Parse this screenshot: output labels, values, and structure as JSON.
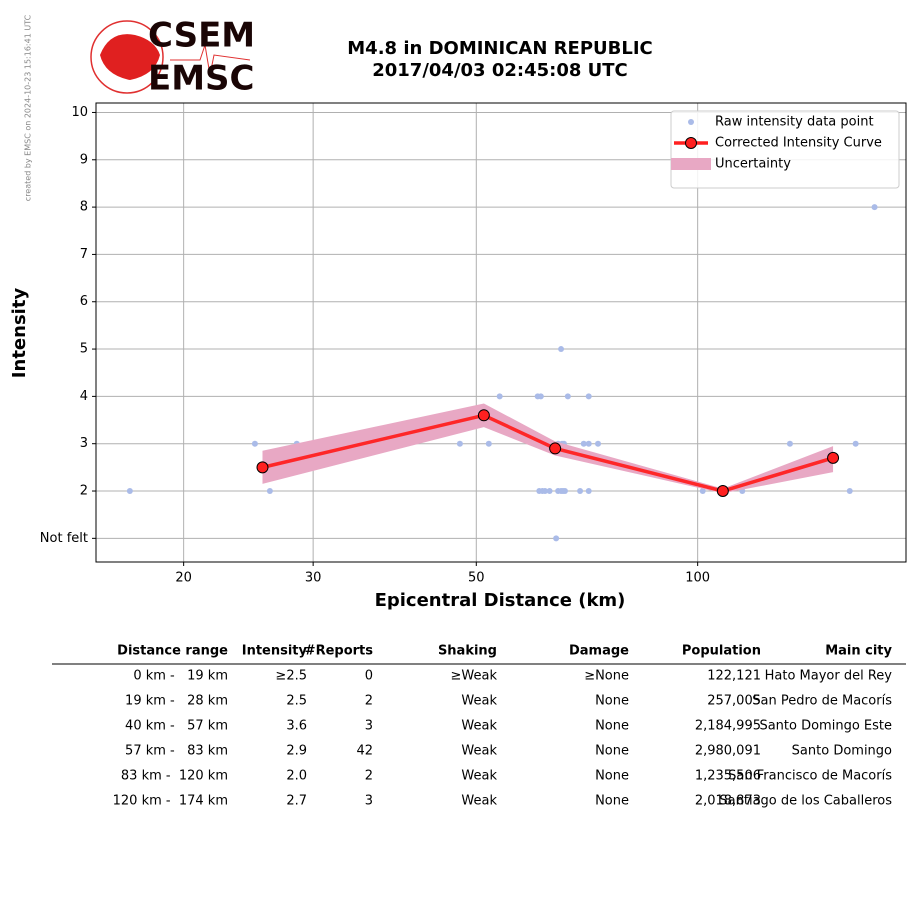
{
  "logo": {
    "top": "CSEM",
    "bottom": "EMSC"
  },
  "credit": "created by EMSC on 2024-10-23 15:16:41 UTC",
  "chart_data": {
    "type": "line",
    "title": "M4.8 in DOMINICAN REPUBLIC",
    "subtitle": "2017/04/03 02:45:08 UTC",
    "x_label": "Epicentral Distance (km)",
    "y_label": "Intensity",
    "xscale": "log",
    "xlim": [
      15.2,
      192
    ],
    "ylim": [
      0.5,
      10.2
    ],
    "xticks": [
      20,
      30,
      50,
      100
    ],
    "yticks": [
      {
        "value": 1,
        "label": "Not felt"
      },
      2,
      3,
      4,
      5,
      6,
      7,
      8,
      9,
      10
    ],
    "grid": true,
    "legend": "upper right",
    "series": [
      {
        "name": "Raw intensity data point",
        "kind": "scatter",
        "color": "#aabbe8",
        "x": [
          16.9,
          25.0,
          26.2,
          28.5,
          47.5,
          52.0,
          53.8,
          60.6,
          61.2,
          60.9,
          61.5,
          62.0,
          62.9,
          64.6,
          65.2,
          65.6,
          66.0,
          64.2,
          65.2,
          64.6,
          65.4,
          65.8,
          66.6,
          69.2,
          70.0,
          71.1,
          71.1,
          71.1,
          73.2,
          101.6,
          115,
          133.5,
          161,
          164,
          174
        ],
        "values": [
          2,
          3,
          2,
          3,
          3,
          3,
          4,
          4,
          4,
          2,
          2,
          2,
          2,
          2,
          2,
          2,
          2,
          1,
          5,
          3,
          3,
          3,
          4,
          2,
          3,
          4,
          3,
          2,
          3,
          2,
          2,
          3,
          2,
          3,
          8
        ]
      },
      {
        "name": "Corrected Intensity Curve",
        "kind": "line",
        "color": "#ff2020",
        "x": [
          25.6,
          51.2,
          64.0,
          108.2,
          152.8
        ],
        "values": [
          2.5,
          3.6,
          2.9,
          2.0,
          2.7
        ]
      },
      {
        "name": "Uncertainty",
        "kind": "band",
        "color": "#e8a8c4",
        "x": [
          25.6,
          51.2,
          64.0,
          108.2,
          152.8
        ],
        "lower": [
          2.15,
          3.35,
          2.75,
          1.95,
          2.4
        ],
        "upper": [
          2.85,
          3.85,
          3.05,
          2.05,
          2.95
        ]
      }
    ]
  },
  "table": {
    "header": [
      "Distance range",
      "Intensity",
      "#Reports",
      "Shaking",
      "Damage",
      "Population",
      "Main city"
    ],
    "rows": [
      [
        "0 km -   19 km",
        "≥2.5",
        "0",
        "≥Weak",
        "≥None",
        "122,121",
        "Hato Mayor del Rey"
      ],
      [
        "19 km -   28 km",
        "2.5",
        "2",
        "Weak",
        "None",
        "257,005",
        "San Pedro de Macorís"
      ],
      [
        "40 km -   57 km",
        "3.6",
        "3",
        "Weak",
        "None",
        "2,184,995",
        "Santo Domingo Este"
      ],
      [
        "57 km -   83 km",
        "2.9",
        "42",
        "Weak",
        "None",
        "2,980,091",
        "Santo Domingo"
      ],
      [
        "83 km -  120 km",
        "2.0",
        "2",
        "Weak",
        "None",
        "1,235,506",
        "San Francisco de Macorís"
      ],
      [
        "120 km -  174 km",
        "2.7",
        "3",
        "Weak",
        "None",
        "2,018,873",
        "Santiago de los Caballeros"
      ]
    ]
  }
}
